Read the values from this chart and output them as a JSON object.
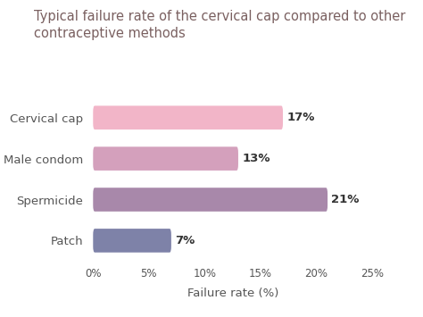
{
  "title_line1": "Typical failure rate of the cervical cap compared to other",
  "title_line2": "contraceptive methods",
  "categories": [
    "Cervical cap",
    "Male condom",
    "Spermicide",
    "Patch"
  ],
  "values": [
    17,
    13,
    21,
    7
  ],
  "bar_colors": [
    "#f2b5c8",
    "#d4a0bc",
    "#a888aa",
    "#7e82a8"
  ],
  "value_labels": [
    "17%",
    "13%",
    "21%",
    "7%"
  ],
  "xlabel": "Failure rate (%)",
  "xlim": [
    0,
    25
  ],
  "xticks": [
    0,
    5,
    10,
    15,
    20,
    25
  ],
  "xticklabels": [
    "0%",
    "5%",
    "10%",
    "15%",
    "20%",
    "25%"
  ],
  "title_color": "#7a6060",
  "label_color": "#555555",
  "value_color": "#333333",
  "background_color": "#ffffff",
  "title_fontsize": 10.5,
  "label_fontsize": 9.5,
  "value_fontsize": 9.5,
  "xlabel_fontsize": 9.5,
  "bar_height": 0.58
}
